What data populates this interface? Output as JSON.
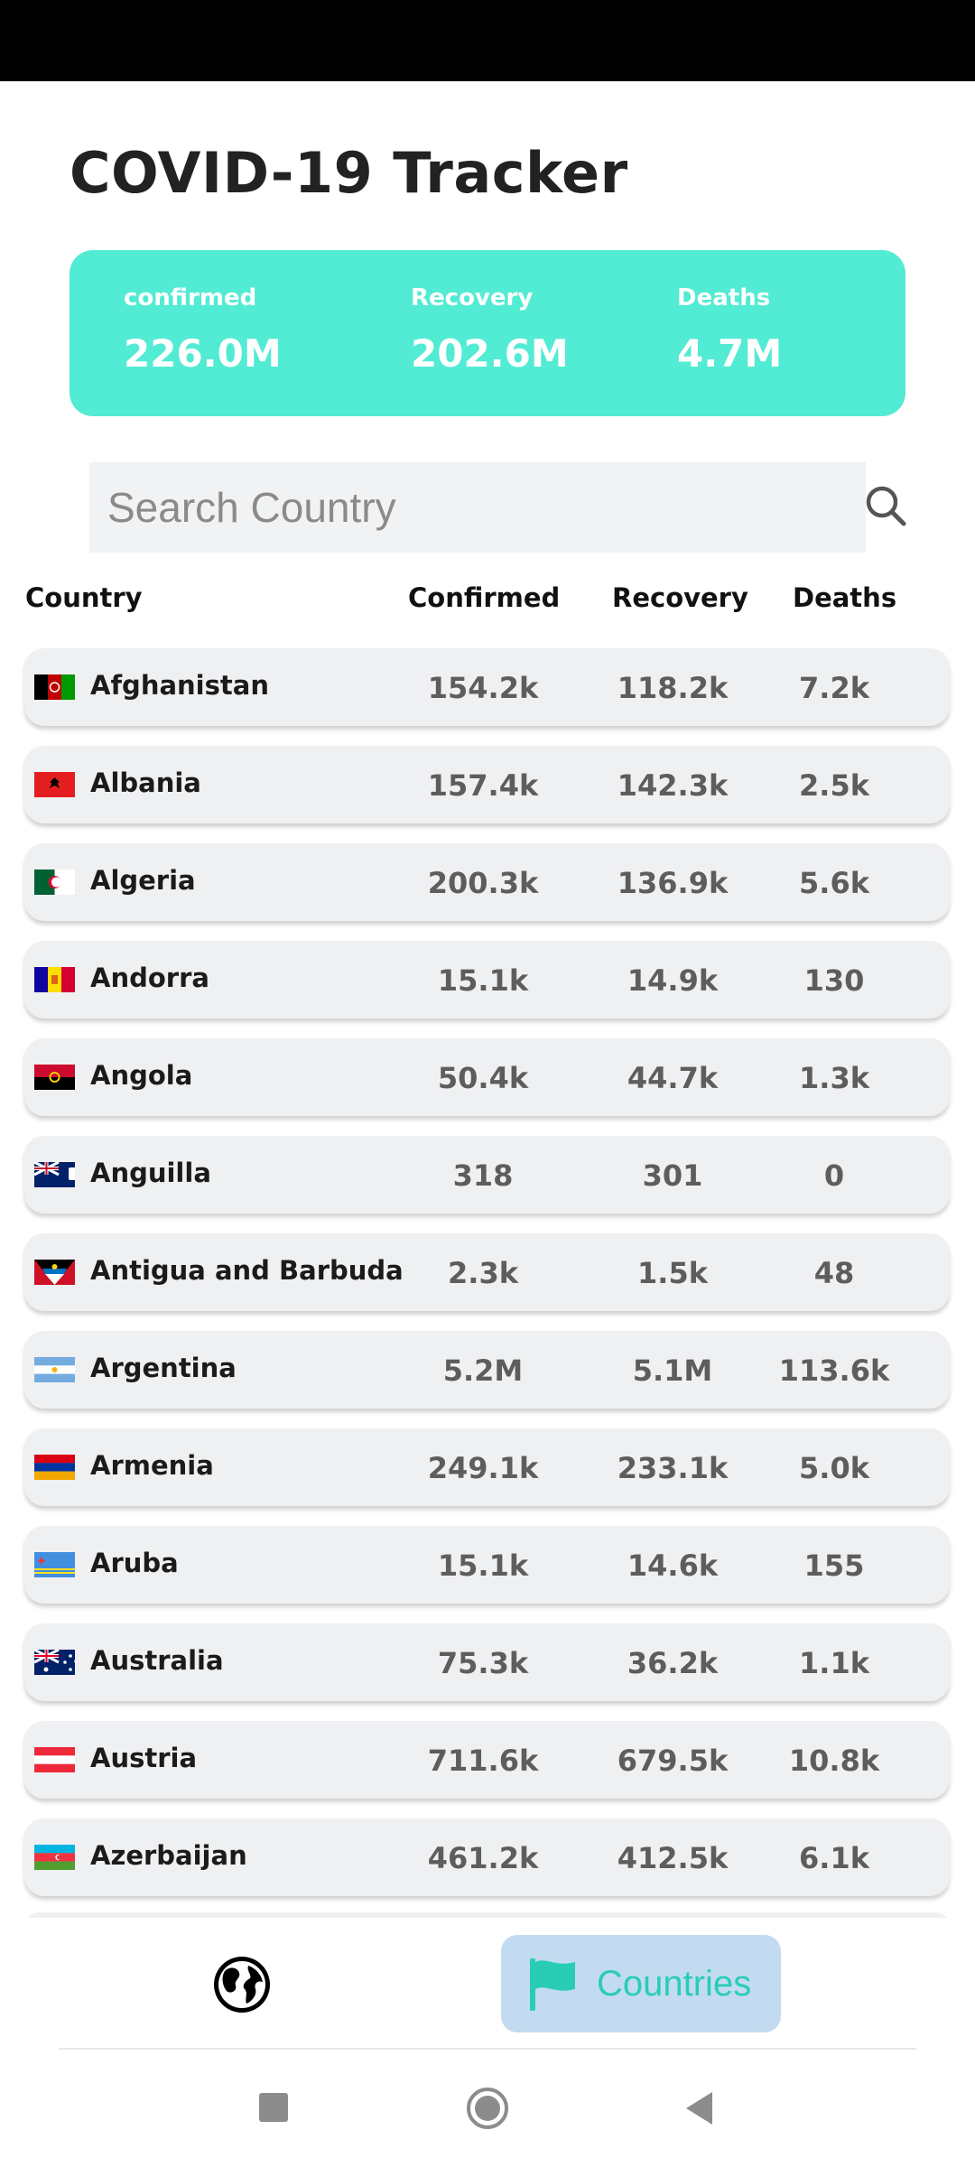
{
  "app": {
    "title": "COVID-19 Tracker"
  },
  "summary": {
    "confirmed_label": "confirmed",
    "confirmed_value": "226.0M",
    "recovery_label": "Recovery",
    "recovery_value": "202.6M",
    "deaths_label": "Deaths",
    "deaths_value": "4.7M",
    "card_color": "#52ebd4"
  },
  "search": {
    "placeholder": "Search Country",
    "value": "",
    "icon": "search-icon"
  },
  "table": {
    "headers": {
      "country": "Country",
      "confirmed": "Confirmed",
      "recovery": "Recovery",
      "deaths": "Deaths"
    },
    "rows": [
      {
        "country": "Afghanistan",
        "confirmed": "154.2k",
        "recovery": "118.2k",
        "deaths": "7.2k"
      },
      {
        "country": "Albania",
        "confirmed": "157.4k",
        "recovery": "142.3k",
        "deaths": "2.5k"
      },
      {
        "country": "Algeria",
        "confirmed": "200.3k",
        "recovery": "136.9k",
        "deaths": "5.6k"
      },
      {
        "country": "Andorra",
        "confirmed": "15.1k",
        "recovery": "14.9k",
        "deaths": "130"
      },
      {
        "country": "Angola",
        "confirmed": "50.4k",
        "recovery": "44.7k",
        "deaths": "1.3k"
      },
      {
        "country": "Anguilla",
        "confirmed": "318",
        "recovery": "301",
        "deaths": "0"
      },
      {
        "country": "Antigua and Barbuda",
        "confirmed": "2.3k",
        "recovery": "1.5k",
        "deaths": "48"
      },
      {
        "country": "Argentina",
        "confirmed": "5.2M",
        "recovery": "5.1M",
        "deaths": "113.6k"
      },
      {
        "country": "Armenia",
        "confirmed": "249.1k",
        "recovery": "233.1k",
        "deaths": "5.0k"
      },
      {
        "country": "Aruba",
        "confirmed": "15.1k",
        "recovery": "14.6k",
        "deaths": "155"
      },
      {
        "country": "Australia",
        "confirmed": "75.3k",
        "recovery": "36.2k",
        "deaths": "1.1k"
      },
      {
        "country": "Austria",
        "confirmed": "711.6k",
        "recovery": "679.5k",
        "deaths": "10.8k"
      },
      {
        "country": "Azerbaijan",
        "confirmed": "461.2k",
        "recovery": "412.5k",
        "deaths": "6.1k"
      }
    ]
  },
  "bottom_nav": {
    "globe_icon": "globe-icon",
    "countries_label": "Countries",
    "countries_icon": "flag-icon",
    "active_color": "#29cdb6",
    "active_bg": "#c3dbf0"
  }
}
